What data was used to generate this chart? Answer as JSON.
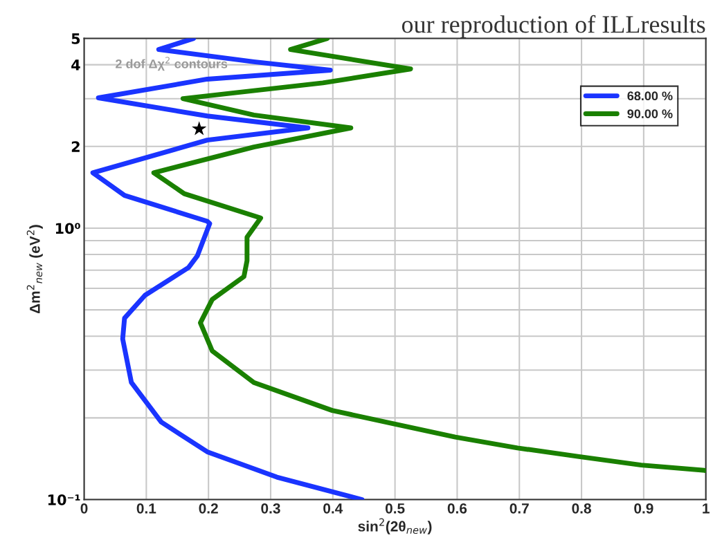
{
  "chart_data": {
    "type": "line",
    "title": "our reproduction of ILLresults",
    "xlabel": "sin$^{2}$(2θ$_{new}$)",
    "ylabel": "Δm$^{2}$$_{new}$ (eV$^{2}$)",
    "annotations": [
      "2 dof Δχ$^{2}$ contours"
    ],
    "xlim": [
      0,
      1
    ],
    "xticks": [
      0,
      0.1,
      0.2,
      0.3,
      0.4,
      0.5,
      0.6,
      0.7,
      0.8,
      0.9,
      1
    ],
    "log": "y",
    "ylim": [
      0.1,
      5
    ],
    "yticks": [
      {
        "value": 0.1,
        "label": "10⁻¹"
      },
      {
        "value": 0.2,
        "label": null
      },
      {
        "value": 0.3,
        "label": null
      },
      {
        "value": 0.4,
        "label": null
      },
      {
        "value": 0.5,
        "label": null
      },
      {
        "value": 0.6,
        "label": null
      },
      {
        "value": 0.7,
        "label": null
      },
      {
        "value": 0.8,
        "label": null
      },
      {
        "value": 0.9,
        "label": null
      },
      {
        "value": 1,
        "label": "10⁰"
      },
      {
        "value": 2,
        "label": "2"
      },
      {
        "value": 3,
        "label": null
      },
      {
        "value": 4,
        "label": "4"
      },
      {
        "value": 5,
        "label": "5"
      }
    ],
    "grid": true,
    "legend": "top right",
    "series": [
      {
        "name": "68.00 %",
        "color": "#1a34ff",
        "x": [
          0.176,
          0.12,
          0.273,
          0.396,
          0.198,
          0.023,
          0.198,
          0.36,
          0.198,
          0.014,
          0.065,
          0.198,
          0.202,
          0.182,
          0.168,
          0.098,
          0.065,
          0.062,
          0.076,
          0.124,
          0.198,
          0.31,
          0.447
        ],
        "values": [
          5.0,
          4.55,
          4.1,
          3.82,
          3.54,
          3.02,
          2.59,
          2.34,
          2.11,
          1.6,
          1.32,
          1.06,
          1.04,
          0.79,
          0.716,
          0.566,
          0.466,
          0.391,
          0.27,
          0.193,
          0.15,
          0.121,
          0.1
        ]
      },
      {
        "name": "90.00 %",
        "color": "#1a8000",
        "x": [
          0.391,
          0.332,
          0.525,
          0.384,
          0.159,
          0.273,
          0.429,
          0.273,
          0.112,
          0.161,
          0.284,
          0.262,
          0.262,
          0.257,
          0.206,
          0.187,
          0.206,
          0.273,
          0.399,
          0.499,
          0.597,
          0.697,
          0.796,
          0.896,
          1.0
        ],
        "values": [
          5.0,
          4.55,
          3.86,
          3.43,
          3.0,
          2.61,
          2.34,
          1.99,
          1.6,
          1.34,
          1.09,
          0.927,
          0.759,
          0.663,
          0.546,
          0.448,
          0.353,
          0.27,
          0.213,
          0.19,
          0.17,
          0.155,
          0.144,
          0.134,
          0.128
        ]
      },
      {
        "color": "#000000",
        "type": "scatter",
        "marker": "star",
        "x": [
          0.185
        ],
        "values": [
          2.32
        ]
      }
    ]
  }
}
